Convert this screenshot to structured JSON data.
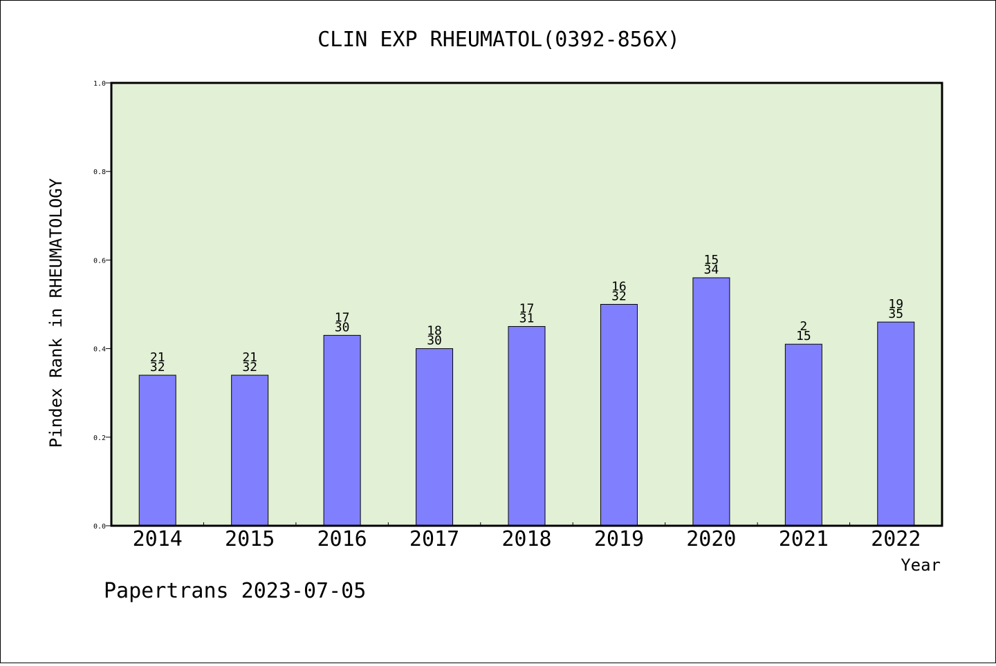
{
  "chart_data": {
    "type": "bar",
    "title": "CLIN EXP RHEUMATOL(0392-856X)",
    "xlabel": "Year",
    "ylabel": "Pindex Rank in RHEUMATOLOGY",
    "ylim": [
      0,
      1.0
    ],
    "yticks": [
      "0.0",
      "0.2",
      "0.4",
      "0.6",
      "0.8",
      "1.0"
    ],
    "categories": [
      "2014",
      "2015",
      "2016",
      "2017",
      "2018",
      "2019",
      "2020",
      "2021",
      "2022"
    ],
    "values": [
      0.34,
      0.34,
      0.43,
      0.4,
      0.45,
      0.5,
      0.56,
      0.41,
      0.46
    ],
    "rank": [
      "21",
      "21",
      "17",
      "18",
      "17",
      "16",
      "15",
      "2",
      "19"
    ],
    "total": [
      "32",
      "32",
      "30",
      "30",
      "31",
      "32",
      "34",
      "15",
      "35"
    ],
    "grid": false,
    "colors": {
      "bar": "#8080ff",
      "plot_background": "#e2f0d6"
    }
  },
  "footer": "Papertrans 2023-07-05"
}
